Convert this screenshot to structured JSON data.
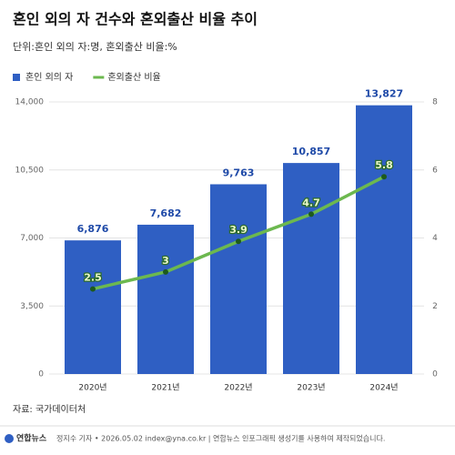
{
  "chart_data": {
    "type": "bar",
    "title": "혼인 외의 자 건수와 혼외출산 비율 추이",
    "subtitle": "단위:혼인 외의 자:명, 혼외출산 비율:%",
    "categories": [
      "2020년",
      "2021년",
      "2022년",
      "2023년",
      "2024년"
    ],
    "series": [
      {
        "name": "혼인 외의 자",
        "type": "bar",
        "color": "#2f5fc3",
        "values": [
          6876,
          7682,
          9763,
          10857,
          13827
        ],
        "value_labels": [
          "6,876",
          "7,682",
          "9,763",
          "10,857",
          "13,827"
        ]
      },
      {
        "name": "혼외출산 비율",
        "type": "line",
        "axis": "y2",
        "color": "#6cb84f",
        "values": [
          2.5,
          3,
          3.9,
          4.7,
          5.8
        ]
      }
    ],
    "ylim": [
      0,
      14000
    ],
    "yticks": [
      0,
      {
        "value": 3500,
        "label": "3,500"
      },
      {
        "value": 7000,
        "label": "7,000"
      },
      {
        "value": 10500,
        "label": "10,500"
      },
      {
        "value": 14000,
        "label": "14,000"
      }
    ],
    "y2lim": [
      0,
      8
    ],
    "y2ticks": [
      0,
      2,
      4,
      6,
      8
    ],
    "grid": true,
    "legend": "top-left",
    "source": "자료: 국가데이터처",
    "logo": "연합뉴스",
    "credit": "정지수 기자 • 2026.05.02 index@yna.co.kr | 연합뉴스 인포그래픽 생성기를 사용하여 제작되었습니다."
  }
}
